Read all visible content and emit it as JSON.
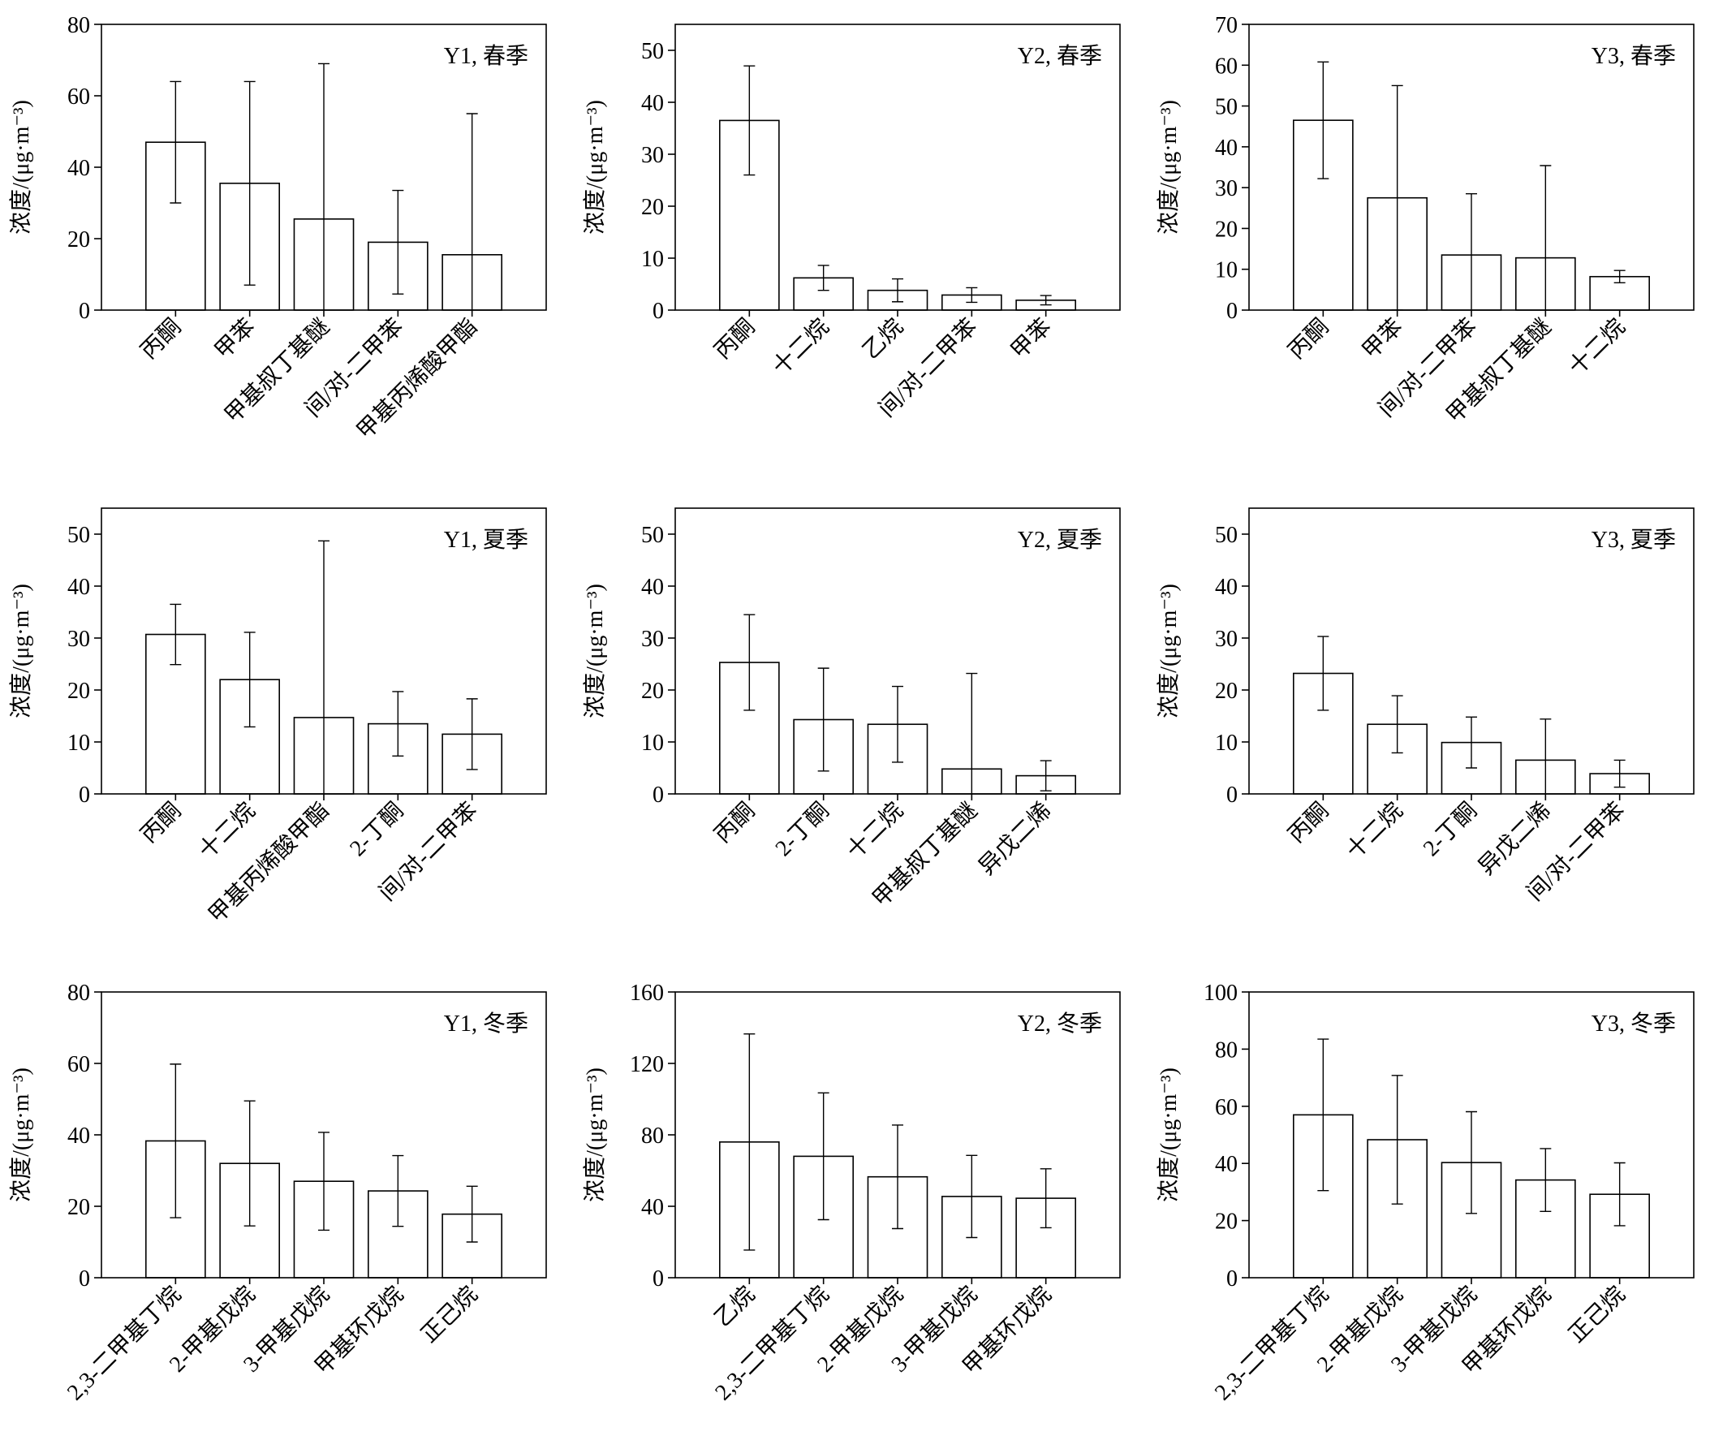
{
  "chart_data": [
    {
      "type": "bar",
      "annotation": "Y1, 春季",
      "ylabel": "浓度/(μg·m⁻³)",
      "categories": [
        "丙酮",
        "甲苯",
        "甲基叔丁基醚",
        "间/对-二甲苯",
        "甲基丙烯酸甲酯"
      ],
      "values": [
        47,
        35.5,
        25.5,
        19,
        15.5
      ],
      "errors": [
        17,
        28.5,
        43.5,
        14.5,
        39.5
      ],
      "ylim": [
        0,
        80
      ],
      "yticks": [
        0,
        20,
        40,
        60,
        80
      ],
      "color": "#ffffff"
    },
    {
      "type": "bar",
      "annotation": "Y2, 春季",
      "ylabel": "浓度/(μg·m⁻³)",
      "categories": [
        "丙酮",
        "十二烷",
        "乙烷",
        "间/对-二甲苯",
        "甲苯"
      ],
      "values": [
        36.5,
        6.2,
        3.8,
        2.9,
        1.9
      ],
      "errors": [
        10.5,
        2.4,
        2.2,
        1.4,
        0.9
      ],
      "ylim": [
        0,
        55
      ],
      "yticks": [
        0,
        10,
        20,
        30,
        40,
        50
      ],
      "color": "#ffffff"
    },
    {
      "type": "bar",
      "annotation": "Y3, 春季",
      "ylabel": "浓度/(μg·m⁻³)",
      "categories": [
        "丙酮",
        "甲苯",
        "间/对-二甲苯",
        "甲基叔丁基醚",
        "十二烷"
      ],
      "values": [
        46.5,
        27.5,
        13.5,
        12.8,
        8.2
      ],
      "errors": [
        14.3,
        27.5,
        15,
        22.6,
        1.5
      ],
      "ylim": [
        0,
        70
      ],
      "yticks": [
        0,
        10,
        20,
        30,
        40,
        50,
        60,
        70
      ],
      "color": "#ffffff"
    },
    {
      "type": "bar",
      "annotation": "Y1, 夏季",
      "ylabel": "浓度/(μg·m⁻³)",
      "categories": [
        "丙酮",
        "十二烷",
        "甲基丙烯酸甲酯",
        "2-丁酮",
        "间/对-二甲苯"
      ],
      "values": [
        30.7,
        22,
        14.7,
        13.5,
        11.5
      ],
      "errors": [
        5.8,
        9.1,
        34,
        6.2,
        6.8
      ],
      "ylim": [
        0,
        55
      ],
      "yticks": [
        0,
        10,
        20,
        30,
        40,
        50
      ],
      "color": "#ffffff"
    },
    {
      "type": "bar",
      "annotation": "Y2, 夏季",
      "ylabel": "浓度/(μg·m⁻³)",
      "categories": [
        "丙酮",
        "2-丁酮",
        "十二烷",
        "甲基叔丁基醚",
        "异戊二烯"
      ],
      "values": [
        25.3,
        14.3,
        13.4,
        4.8,
        3.5
      ],
      "errors": [
        9.2,
        9.9,
        7.3,
        18.4,
        2.9
      ],
      "ylim": [
        0,
        55
      ],
      "yticks": [
        0,
        10,
        20,
        30,
        40,
        50
      ],
      "color": "#ffffff"
    },
    {
      "type": "bar",
      "annotation": "Y3, 夏季",
      "ylabel": "浓度/(μg·m⁻³)",
      "categories": [
        "丙酮",
        "十二烷",
        "2-丁酮",
        "异戊二烯",
        "间/对-二甲苯"
      ],
      "values": [
        23.2,
        13.4,
        9.9,
        6.5,
        3.9
      ],
      "errors": [
        7.1,
        5.5,
        4.9,
        7.9,
        2.6
      ],
      "ylim": [
        0,
        55
      ],
      "yticks": [
        0,
        10,
        20,
        30,
        40,
        50
      ],
      "color": "#ffffff"
    },
    {
      "type": "bar",
      "annotation": "Y1, 冬季",
      "ylabel": "浓度/(μg·m⁻³)",
      "categories": [
        "2,3-二甲基丁烷",
        "2-甲基戊烷",
        "3-甲基戊烷",
        "甲基环戊烷",
        "正己烷"
      ],
      "values": [
        38.3,
        32,
        27,
        24.3,
        17.8
      ],
      "errors": [
        21.5,
        17.5,
        13.7,
        9.9,
        7.8
      ],
      "ylim": [
        0,
        80
      ],
      "yticks": [
        0,
        20,
        40,
        60,
        80
      ],
      "color": "#ffffff"
    },
    {
      "type": "bar",
      "annotation": "Y2, 冬季",
      "ylabel": "浓度/(μg·m⁻³)",
      "categories": [
        "乙烷",
        "2,3-二甲基丁烷",
        "2-甲基戊烷",
        "3-甲基戊烷",
        "甲基环戊烷"
      ],
      "values": [
        76,
        68,
        56.5,
        45.5,
        44.5
      ],
      "errors": [
        60.5,
        35.5,
        29,
        23,
        16.5
      ],
      "ylim": [
        0,
        160
      ],
      "yticks": [
        0,
        40,
        80,
        120,
        160
      ],
      "color": "#ffffff"
    },
    {
      "type": "bar",
      "annotation": "Y3, 冬季",
      "ylabel": "浓度/(μg·m⁻³)",
      "categories": [
        "2,3-二甲基丁烷",
        "2-甲基戊烷",
        "3-甲基戊烷",
        "甲基环戊烷",
        "正己烷"
      ],
      "values": [
        57,
        48.3,
        40.3,
        34.2,
        29.2
      ],
      "errors": [
        26.5,
        22.5,
        17.8,
        11,
        11
      ],
      "ylim": [
        0,
        100
      ],
      "yticks": [
        0,
        20,
        40,
        60,
        80,
        100
      ],
      "color": "#ffffff"
    }
  ]
}
